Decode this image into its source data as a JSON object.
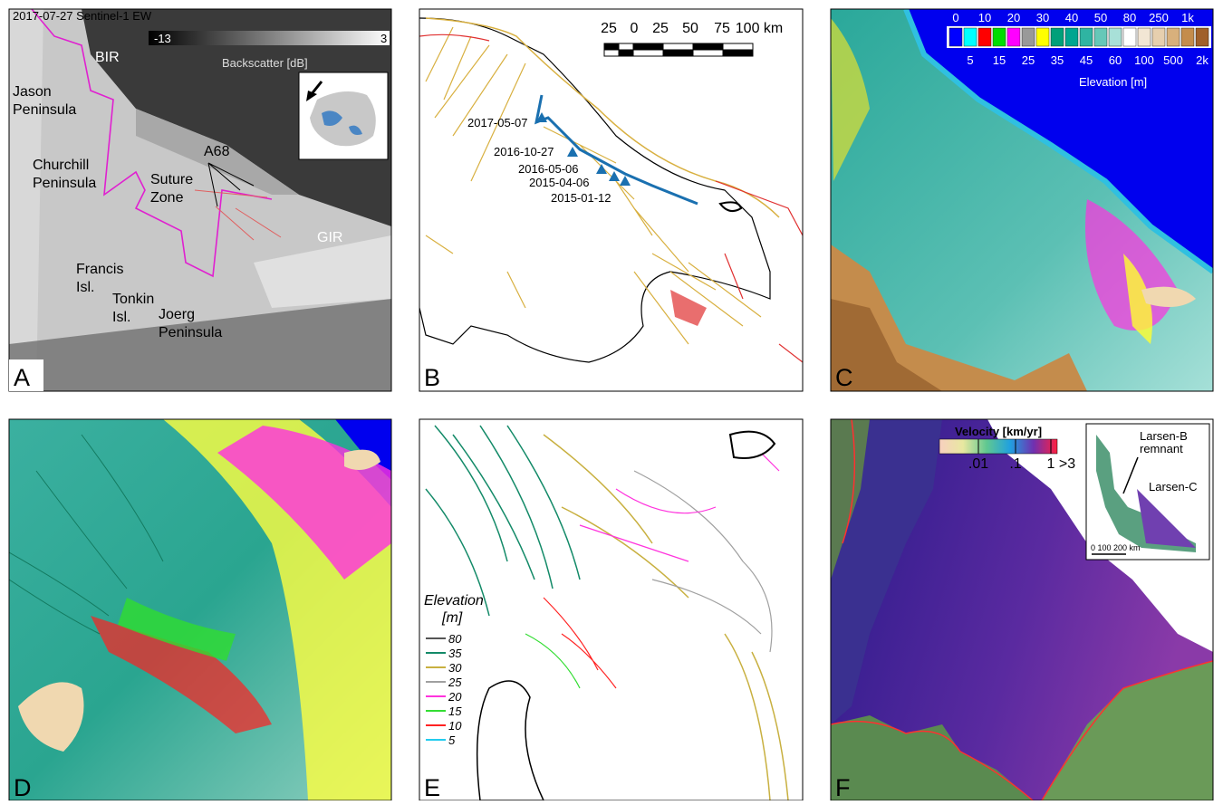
{
  "panels": {
    "a": {
      "letter": "A",
      "date_label": "2017-07-27 Sentinel-1 EW",
      "colorbar": {
        "min": "-13",
        "max": "3",
        "label": "Backscatter [dB]"
      },
      "place_labels": [
        [
          "BIR"
        ],
        [
          "Jason",
          "Peninsula"
        ],
        [
          "A68"
        ],
        [
          "Churchill",
          "Peninsula"
        ],
        [
          "Suture",
          "Zone"
        ],
        [
          "GIR"
        ],
        [
          "Francis",
          "Isl."
        ],
        [
          "Tonkin",
          "Isl."
        ],
        [
          "Joerg",
          "Peninsula"
        ]
      ]
    },
    "b": {
      "letter": "B",
      "scale_labels": [
        "25",
        "0",
        "25",
        "50",
        "75",
        "100 km"
      ],
      "front_dates": [
        "2017-05-07",
        "2016-10-27",
        "2016-05-06",
        "2015-04-06",
        "2015-01-12"
      ]
    },
    "c": {
      "letter": "C",
      "colorbar": {
        "label": "Elevation [m]",
        "classes": [
          {
            "label": "0",
            "color": "#0000ff"
          },
          {
            "label": "5",
            "color": "#00ffff"
          },
          {
            "label": "10",
            "color": "#ff0000"
          },
          {
            "label": "15",
            "color": "#00dd00"
          },
          {
            "label": "20",
            "color": "#ff00ff"
          },
          {
            "label": "25",
            "color": "#999999"
          },
          {
            "label": "30",
            "color": "#ffff00"
          },
          {
            "label": "35",
            "color": "#00a07a"
          },
          {
            "label": "40",
            "color": "#00a590"
          },
          {
            "label": "45",
            "color": "#2fb4a2"
          },
          {
            "label": "50",
            "color": "#66c8b8"
          },
          {
            "label": "60",
            "color": "#a8e0d8"
          },
          {
            "label": "80",
            "color": "#ffffff"
          },
          {
            "label": "100",
            "color": "#f2e6d4"
          },
          {
            "label": "250",
            "color": "#e6cfae"
          },
          {
            "label": "500",
            "color": "#d8b07c"
          },
          {
            "label": "1k",
            "color": "#c48c4c"
          },
          {
            "label": "2k",
            "color": "#a0602a"
          }
        ]
      }
    },
    "d": {
      "letter": "D"
    },
    "e": {
      "letter": "E",
      "legend": {
        "title": [
          "Elevation",
          "[m]"
        ],
        "entries": [
          {
            "label": "80",
            "color": "#555555"
          },
          {
            "label": "35",
            "color": "#138a68"
          },
          {
            "label": "30",
            "color": "#c8b040"
          },
          {
            "label": "25",
            "color": "#a0a0a0"
          },
          {
            "label": "20",
            "color": "#ff33dd"
          },
          {
            "label": "15",
            "color": "#33dd33"
          },
          {
            "label": "10",
            "color": "#ff2222"
          },
          {
            "label": "5",
            "color": "#22ccee"
          }
        ]
      }
    },
    "f": {
      "letter": "F",
      "colorbar": {
        "title": "Velocity [km/yr]",
        "ticks": [
          ".01",
          ".1",
          "1",
          ">3"
        ]
      },
      "inset": {
        "labels": [
          [
            "Larsen-B",
            "remnant"
          ],
          [
            "Larsen-C"
          ]
        ],
        "scale": "0 100 200 km"
      }
    }
  }
}
